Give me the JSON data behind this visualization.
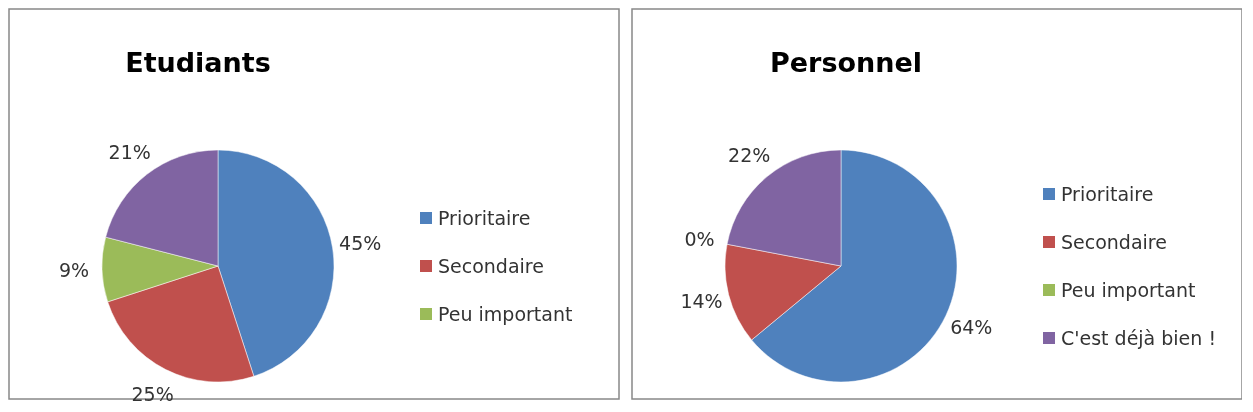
{
  "chart_data": [
    {
      "type": "pie",
      "title": "Etudiants",
      "categories": [
        "Prioritaire",
        "Secondaire",
        "Peu important",
        null
      ],
      "values": [
        45,
        25,
        9,
        21
      ],
      "value_labels": [
        "45%",
        "25%",
        "9%",
        "21%"
      ],
      "colors": [
        "#4f81bd",
        "#c0504d",
        "#9bbb59",
        "#8064a2"
      ],
      "legend": "right"
    },
    {
      "type": "pie",
      "title": "Personnel",
      "categories": [
        "Prioritaire",
        "Secondaire",
        "Peu important",
        "C'est déjà bien !"
      ],
      "values": [
        64,
        14,
        0,
        22
      ],
      "value_labels": [
        "64%",
        "14%",
        "0%",
        "22%"
      ],
      "colors": [
        "#4f81bd",
        "#c0504d",
        "#9bbb59",
        "#8064a2"
      ],
      "legend": "right"
    }
  ]
}
